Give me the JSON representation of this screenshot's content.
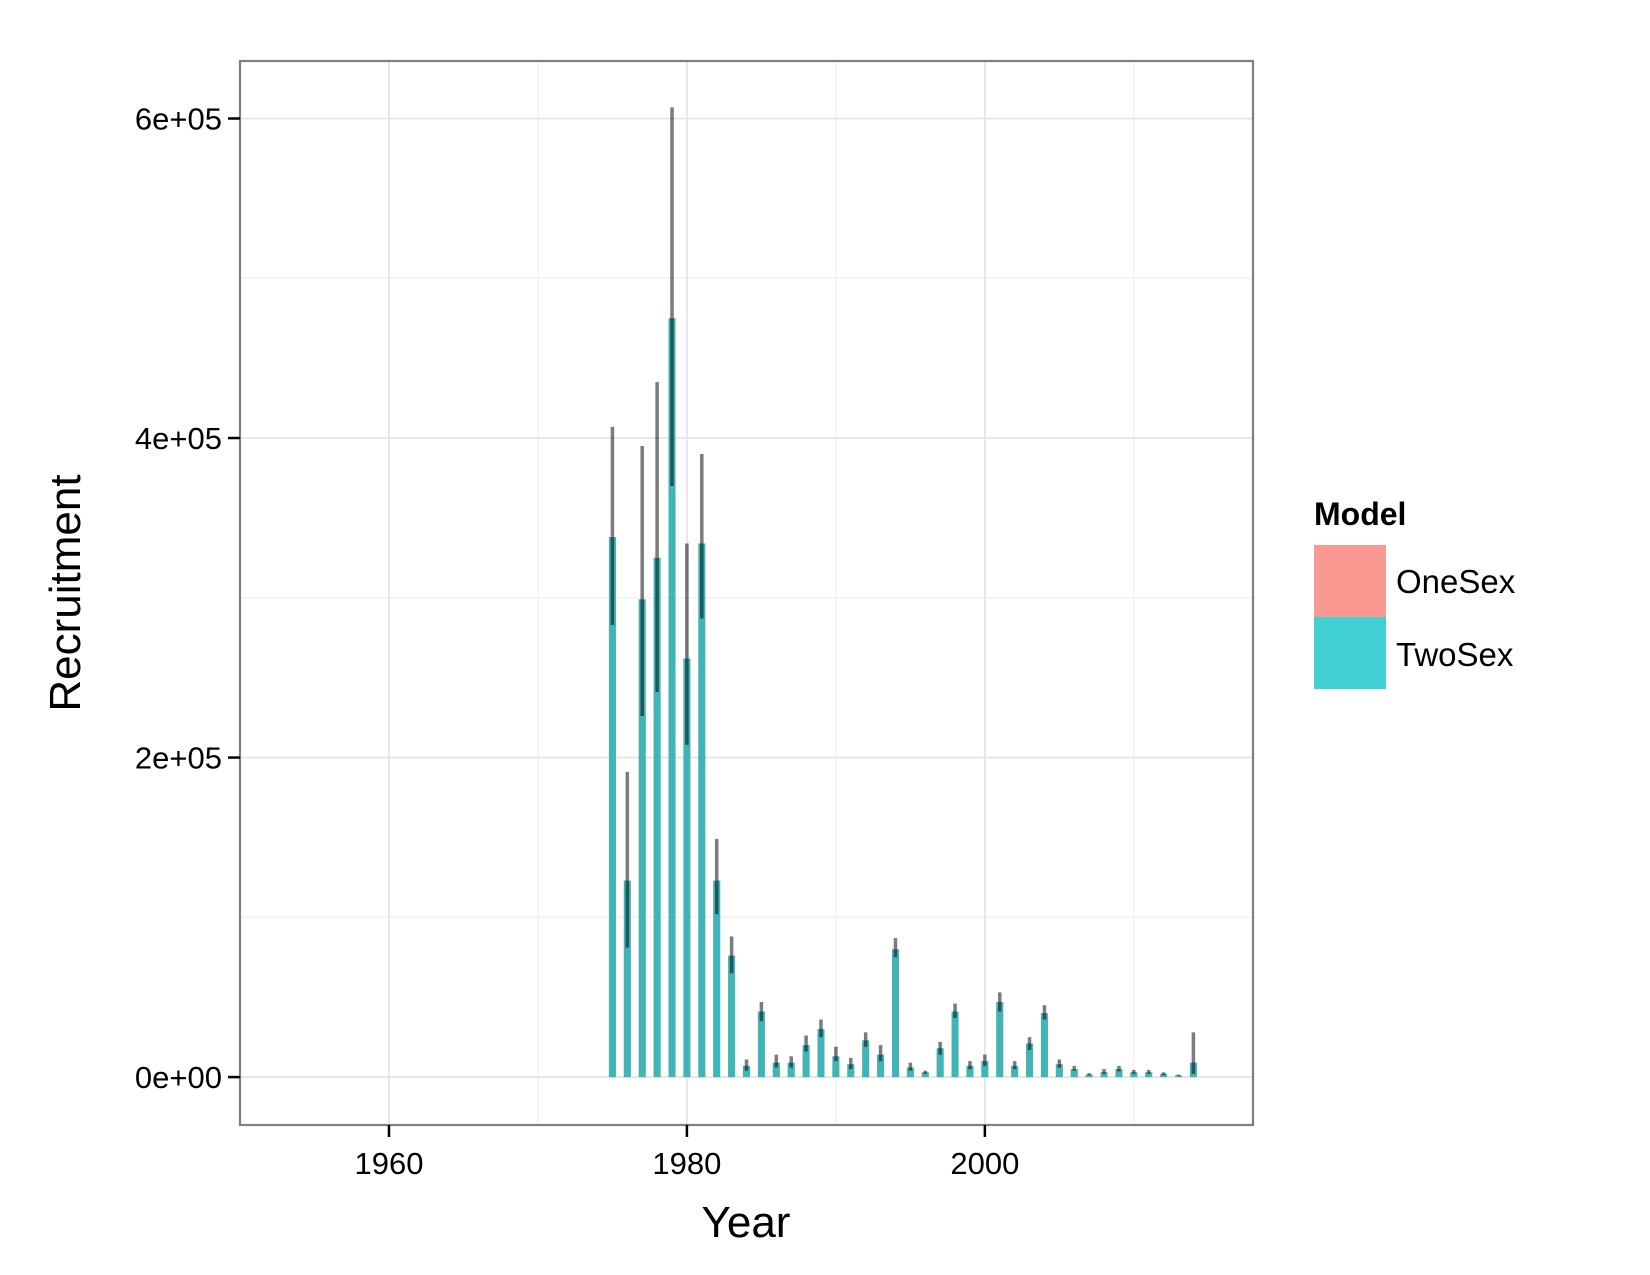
{
  "chart_data": {
    "type": "bar",
    "xlabel": "Year",
    "ylabel": "Recruitment",
    "xlim": [
      1950,
      2018
    ],
    "ylim": [
      -30000,
      636000
    ],
    "x_ticks": [
      1960,
      1980,
      2000
    ],
    "x_tick_labels": [
      "1960",
      "1980",
      "2000"
    ],
    "y_ticks": [
      0,
      200000,
      400000,
      600000
    ],
    "y_tick_labels": [
      "0e+00",
      "2e+05",
      "4e+05",
      "6e+05"
    ],
    "grid": true,
    "legend": {
      "title": "Model",
      "position": "right",
      "entries": [
        {
          "name": "OneSex",
          "color": "#F8766D"
        },
        {
          "name": "TwoSex",
          "color": "#00BFC4"
        }
      ]
    },
    "colors": {
      "OneSex": "#F8766D",
      "TwoSex": "#00BFC4",
      "errorbar": "#000000"
    },
    "x": [
      1975,
      1976,
      1977,
      1978,
      1979,
      1980,
      1981,
      1982,
      1983,
      1984,
      1985,
      1986,
      1987,
      1988,
      1989,
      1990,
      1991,
      1992,
      1993,
      1994,
      1995,
      1996,
      1997,
      1998,
      1999,
      2000,
      2001,
      2002,
      2003,
      2004,
      2005,
      2006,
      2007,
      2008,
      2009,
      2010,
      2011,
      2012,
      2013,
      2014
    ],
    "series": [
      {
        "name": "OneSex",
        "values": [
          338000,
          123000,
          299000,
          325000,
          475000,
          262000,
          334000,
          123000,
          76000,
          7000,
          41000,
          9000,
          9000,
          20000,
          30000,
          13000,
          8000,
          23000,
          14000,
          80000,
          6000,
          3000,
          18000,
          41000,
          7000,
          10000,
          47000,
          7000,
          21000,
          40000,
          8000,
          5000,
          1500,
          3000,
          5000,
          3000,
          3000,
          2000,
          1000,
          9000
        ],
        "upper": [
          407000,
          191000,
          395000,
          435000,
          607000,
          334000,
          390000,
          149000,
          88000,
          11000,
          47000,
          14000,
          13000,
          26000,
          36000,
          19000,
          12000,
          28000,
          20000,
          87000,
          9000,
          4000,
          22000,
          46000,
          10000,
          14000,
          53000,
          10000,
          25000,
          45000,
          11000,
          7000,
          2500,
          5000,
          7000,
          4500,
          4500,
          3000,
          1500,
          28000
        ],
        "lower": [
          283000,
          81000,
          226000,
          241000,
          370000,
          208000,
          287000,
          102000,
          65000,
          4000,
          35000,
          6000,
          6000,
          16000,
          25000,
          10000,
          5000,
          19000,
          10000,
          75000,
          4000,
          2000,
          14000,
          37000,
          5000,
          7000,
          41000,
          5000,
          17000,
          36000,
          6000,
          4000,
          1000,
          2000,
          3500,
          2000,
          2000,
          1200,
          600,
          2000
        ]
      },
      {
        "name": "TwoSex",
        "values": [
          338000,
          123000,
          299000,
          325000,
          475000,
          262000,
          334000,
          123000,
          76000,
          7000,
          41000,
          9000,
          9000,
          20000,
          30000,
          13000,
          8000,
          23000,
          14000,
          80000,
          6000,
          3000,
          18000,
          41000,
          7000,
          10000,
          47000,
          7000,
          21000,
          40000,
          8000,
          5000,
          1500,
          3000,
          5000,
          3000,
          3000,
          2000,
          1000,
          9000
        ],
        "upper": [
          407000,
          191000,
          395000,
          435000,
          607000,
          334000,
          390000,
          149000,
          88000,
          11000,
          47000,
          14000,
          13000,
          26000,
          36000,
          19000,
          12000,
          28000,
          20000,
          87000,
          9000,
          4000,
          22000,
          46000,
          10000,
          14000,
          53000,
          10000,
          25000,
          45000,
          11000,
          7000,
          2500,
          5000,
          7000,
          4500,
          4500,
          3000,
          1500,
          28000
        ],
        "lower": [
          283000,
          81000,
          226000,
          241000,
          370000,
          208000,
          287000,
          102000,
          65000,
          4000,
          35000,
          6000,
          6000,
          16000,
          25000,
          10000,
          5000,
          19000,
          10000,
          75000,
          4000,
          2000,
          14000,
          37000,
          5000,
          7000,
          41000,
          5000,
          17000,
          36000,
          6000,
          4000,
          1000,
          2000,
          3500,
          2000,
          2000,
          1200,
          600,
          2000
        ]
      }
    ]
  }
}
